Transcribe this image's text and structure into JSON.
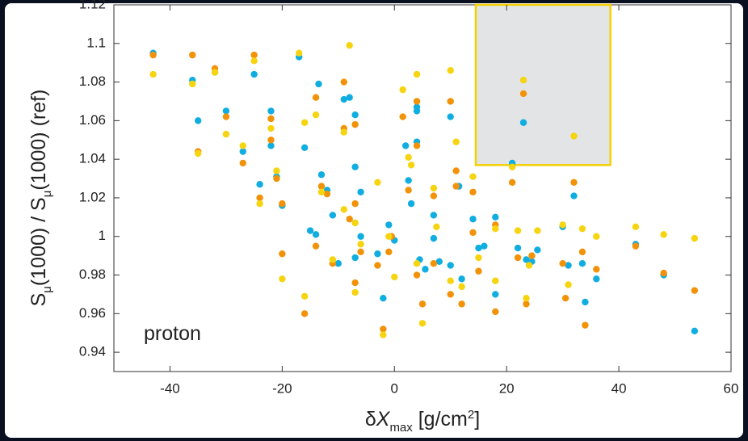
{
  "chart_data": {
    "type": "scatter",
    "xlabel": [
      "δ",
      "X",
      "max",
      " [g/cm",
      "2",
      "]"
    ],
    "ylabel": [
      "S",
      "μ",
      "(1000) / S",
      "μ",
      "(1000) (ref)"
    ],
    "annotation": "proton",
    "xlim": [
      -50,
      60
    ],
    "ylim": [
      0.93,
      1.12
    ],
    "xticks": [
      -40,
      -20,
      0,
      20,
      40,
      60
    ],
    "yticks": [
      0.94,
      0.96,
      0.98,
      1,
      1.02,
      1.04,
      1.06,
      1.08,
      1.1,
      1.12
    ],
    "grid": false,
    "highlight": {
      "x": [
        14.5,
        38.5
      ],
      "y": [
        1.037,
        1.12
      ],
      "fill": "#e3e4e6",
      "stroke": "#f5d000"
    },
    "series": [
      {
        "color": "#10aee0",
        "x": [
          -43,
          -36,
          -35,
          -30,
          -27,
          -25,
          -24,
          -22,
          -22,
          -21,
          -20,
          -17,
          -16,
          -15,
          -14,
          -13.5,
          -13,
          -12,
          -11,
          -10,
          -9,
          -8,
          -7,
          -7,
          -6,
          -6,
          -7,
          -3,
          -2,
          -1,
          0,
          2,
          2.5,
          3,
          4,
          4,
          4,
          4.5,
          5.5,
          7,
          7,
          8,
          10,
          10,
          12,
          11.5,
          14,
          15,
          16,
          18,
          18,
          21,
          23,
          22,
          23.5,
          24.5,
          25.5,
          30,
          31,
          32,
          33.5,
          34,
          36,
          43,
          48,
          53.5
        ],
        "values": [
          1.095,
          1.081,
          1.06,
          1.065,
          1.044,
          1.084,
          1.027,
          1.065,
          1.047,
          1.031,
          1.016,
          1.093,
          1.046,
          1.003,
          1.001,
          1.079,
          1.032,
          1.024,
          1.011,
          0.986,
          1.071,
          1.072,
          1.063,
          1.036,
          1.023,
          1.0,
          0.989,
          0.991,
          0.968,
          1.006,
          0.998,
          1.047,
          1.029,
          1.017,
          1.067,
          1.065,
          1.049,
          0.988,
          0.983,
          1.011,
          0.999,
          0.987,
          1.062,
          0.985,
          0.978,
          1.026,
          1.009,
          0.994,
          0.995,
          1.01,
          0.97,
          1.038,
          1.059,
          0.994,
          0.988,
          0.987,
          0.993,
          1.005,
          0.985,
          1.021,
          0.986,
          0.966,
          0.978,
          0.996,
          0.98,
          0.951
        ]
      },
      {
        "color": "#f29208",
        "x": [
          -43,
          -36,
          -35,
          -32,
          -30,
          -27,
          -25,
          -24,
          -22,
          -22,
          -21,
          -20,
          -20,
          -16,
          -14,
          -14,
          -13,
          -12,
          -11,
          -9,
          -9,
          -8,
          -7,
          -7,
          -7,
          -6,
          -3,
          -2,
          -1,
          -0.5,
          1.5,
          2.5,
          4,
          4,
          4,
          5,
          7,
          7,
          10,
          10,
          11,
          11,
          12,
          14,
          14,
          15,
          18,
          18,
          21,
          23,
          22,
          23.5,
          24.5,
          30,
          30.5,
          32,
          33.5,
          34,
          36,
          43,
          48,
          53.5
        ],
        "values": [
          1.094,
          1.094,
          1.044,
          1.087,
          1.062,
          1.038,
          1.094,
          1.02,
          1.05,
          1.061,
          1.03,
          1.017,
          0.991,
          0.96,
          0.995,
          1.072,
          1.026,
          1.022,
          0.986,
          1.056,
          1.08,
          1.009,
          1.058,
          1.017,
          0.976,
          0.992,
          0.985,
          0.952,
          0.992,
          1.0,
          1.062,
          1.024,
          1.07,
          1.047,
          0.98,
          0.965,
          1.021,
          0.986,
          1.07,
          0.97,
          1.034,
          1.026,
          0.965,
          1.023,
          1.002,
          0.982,
          1.006,
          0.961,
          1.028,
          1.074,
          0.989,
          0.965,
          0.99,
          0.986,
          0.968,
          1.028,
          0.992,
          0.954,
          0.983,
          0.995,
          0.981,
          0.972
        ]
      },
      {
        "color": "#f6d410",
        "x": [
          -43,
          -36,
          -35,
          -32,
          -30,
          -27,
          -25,
          -24,
          -22,
          -21,
          -20,
          -17,
          -16,
          -16,
          -14,
          -13,
          -11,
          -9,
          -9,
          -8,
          -7,
          -7,
          -6,
          -3,
          -2,
          -1,
          0,
          1.5,
          2.5,
          3,
          4,
          4,
          5,
          7,
          7.5,
          10,
          10,
          11,
          12,
          14,
          15,
          18,
          18,
          21,
          22,
          23,
          23.5,
          24,
          25.5,
          30,
          31,
          32,
          33.5,
          36,
          43,
          48,
          53.5
        ],
        "values": [
          1.084,
          1.079,
          1.043,
          1.085,
          1.053,
          1.047,
          1.091,
          1.017,
          1.056,
          1.034,
          0.978,
          1.095,
          1.059,
          0.969,
          1.063,
          1.023,
          0.988,
          1.014,
          1.054,
          1.099,
          1.007,
          0.971,
          0.996,
          1.028,
          0.949,
          1.0,
          0.979,
          1.076,
          1.041,
          1.037,
          1.084,
          0.986,
          0.955,
          1.025,
          1.005,
          1.086,
          0.977,
          1.049,
          0.974,
          1.031,
          0.989,
          1.004,
          0.977,
          1.036,
          1.003,
          1.081,
          0.968,
          0.985,
          1.003,
          1.006,
          0.975,
          1.052,
          1.004,
          1.0,
          1.005,
          1.001,
          0.999
        ]
      }
    ]
  }
}
